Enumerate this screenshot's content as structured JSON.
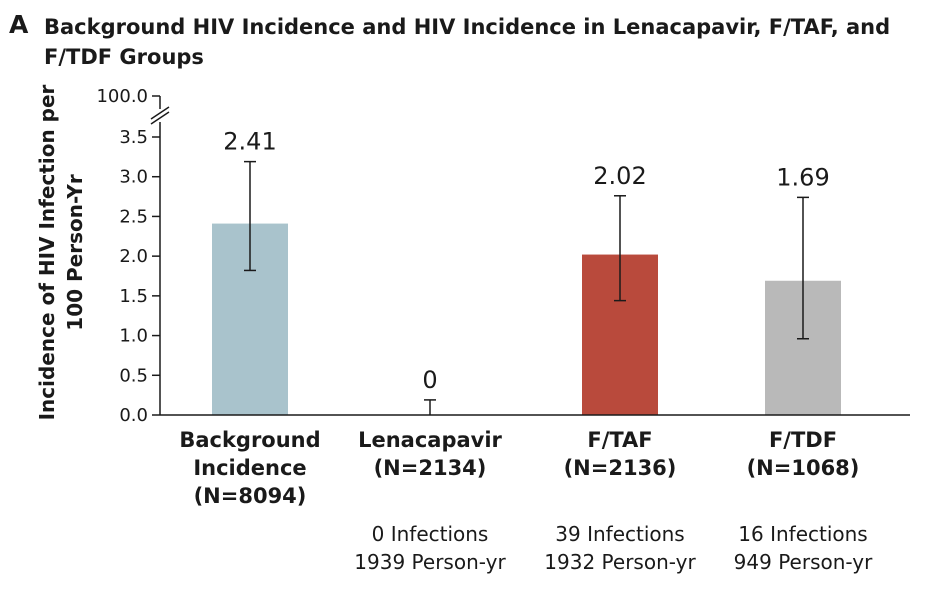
{
  "panel_letter": "A",
  "chart_data": {
    "type": "bar",
    "title": "Background HIV Incidence and HIV Incidence in Lenacapavir, F/TAF, and F/TDF Groups",
    "ylabel": "Incidence of HIV Infection per 100 Person-Yr",
    "ylim": [
      0,
      3.5
    ],
    "y_ticks": [
      "0.0",
      "0.5",
      "1.0",
      "1.5",
      "2.0",
      "2.5",
      "3.0",
      "3.5"
    ],
    "y_break_tick": "100.0",
    "grid": false,
    "categories": [
      {
        "name": "Background Incidence",
        "n": "(N=8094)"
      },
      {
        "name": "Lenacapavir",
        "n": "(N=2134)"
      },
      {
        "name": "F/TAF",
        "n": "(N=2136)"
      },
      {
        "name": "F/TDF",
        "n": "(N=1068)"
      }
    ],
    "values": [
      2.41,
      0,
      2.02,
      1.69
    ],
    "value_labels": [
      "2.41",
      "0",
      "2.02",
      "1.69"
    ],
    "ci_lower": [
      1.82,
      0,
      1.44,
      0.96
    ],
    "ci_upper": [
      3.19,
      0.19,
      2.76,
      2.74
    ],
    "colors": [
      "#a9c3cc",
      "#ffffff",
      "#b94a3c",
      "#b9b9b9"
    ],
    "notes": [
      {
        "line1": "",
        "line2": ""
      },
      {
        "line1": "0 Infections",
        "line2": "1939 Person-yr"
      },
      {
        "line1": "39 Infections",
        "line2": "1932 Person-yr"
      },
      {
        "line1": "16 Infections",
        "line2": "949 Person-yr"
      }
    ]
  }
}
